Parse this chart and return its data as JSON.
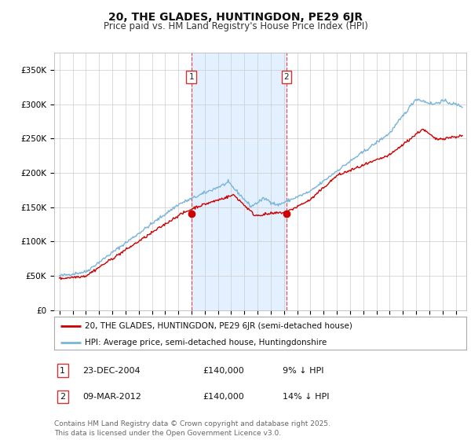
{
  "title": "20, THE GLADES, HUNTINGDON, PE29 6JR",
  "subtitle": "Price paid vs. HM Land Registry's House Price Index (HPI)",
  "ylim": [
    0,
    375000
  ],
  "yticks": [
    0,
    50000,
    100000,
    150000,
    200000,
    250000,
    300000,
    350000
  ],
  "ytick_labels": [
    "£0",
    "£50K",
    "£100K",
    "£150K",
    "£200K",
    "£250K",
    "£300K",
    "£350K"
  ],
  "hpi_color": "#7ab4d8",
  "price_color": "#cc0000",
  "marker1_x": 2004.98,
  "marker2_x": 2012.19,
  "legend_line1": "20, THE GLADES, HUNTINGDON, PE29 6JR (semi-detached house)",
  "legend_line2": "HPI: Average price, semi-detached house, Huntingdonshire",
  "table_row1": [
    "1",
    "23-DEC-2004",
    "£140,000",
    "9% ↓ HPI"
  ],
  "table_row2": [
    "2",
    "09-MAR-2012",
    "£140,000",
    "14% ↓ HPI"
  ],
  "footer": "Contains HM Land Registry data © Crown copyright and database right 2025.\nThis data is licensed under the Open Government Licence v3.0.",
  "bg_color": "#ffffff",
  "grid_color": "#cccccc",
  "shade_color": "#ddeeff",
  "title_fontsize": 10,
  "subtitle_fontsize": 8.5,
  "tick_fontsize": 7.5,
  "legend_fontsize": 7.5,
  "table_fontsize": 8,
  "footer_fontsize": 6.5
}
